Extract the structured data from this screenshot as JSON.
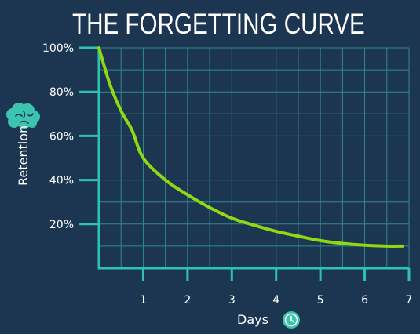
{
  "colors": {
    "background": "#1c3652",
    "grid": "#2e8a8e",
    "axis": "#2cc4ae",
    "curve": "#8fd813",
    "text": "#ffffff",
    "icon": "#3cc4b0"
  },
  "icons": {
    "y_axis": "brain-icon",
    "x_axis": "clock-icon"
  },
  "chart_data": {
    "type": "line",
    "title": "THE FORGETTING CURVE",
    "xlabel": "Days",
    "ylabel": "Retention",
    "xlim": [
      0,
      7
    ],
    "ylim": [
      0,
      100
    ],
    "x_ticks": [
      "1",
      "2",
      "3",
      "4",
      "5",
      "6",
      "7"
    ],
    "y_ticks": [
      "20%",
      "40%",
      "60%",
      "80%",
      "100%"
    ],
    "grid": true,
    "series": [
      {
        "x": [
          0,
          0.25,
          0.5,
          0.75,
          1,
          1.5,
          2,
          2.5,
          3,
          3.5,
          4,
          4.5,
          5,
          5.5,
          6,
          6.5,
          6.85
        ],
        "values": [
          100,
          83.3,
          71.4,
          62.5,
          50,
          40,
          33.3,
          27.5,
          22.7,
          19.5,
          16.7,
          14.5,
          12.5,
          11.2,
          10.4,
          10,
          10
        ]
      }
    ]
  }
}
